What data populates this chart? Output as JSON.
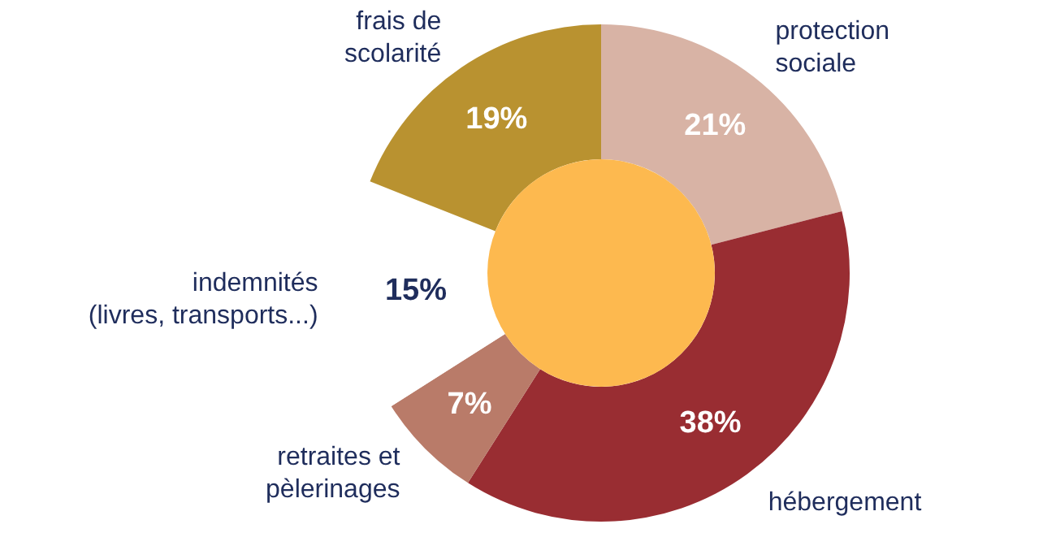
{
  "chart_data": {
    "type": "donut",
    "categories": [
      "protection\nsociale",
      "hébergement",
      "retraites et\npèlerinages",
      "indemnités\n(livres, transports...)",
      "frais de\nscolarité"
    ],
    "values": [
      21,
      38,
      7,
      15,
      19
    ],
    "colors": [
      "#d8b3a5",
      "#992d32",
      "#b97b69",
      "#ffffff",
      "#b99230"
    ],
    "value_labels": [
      "21%",
      "38%",
      "7%",
      "15%",
      "19%"
    ],
    "legend": false
  }
}
